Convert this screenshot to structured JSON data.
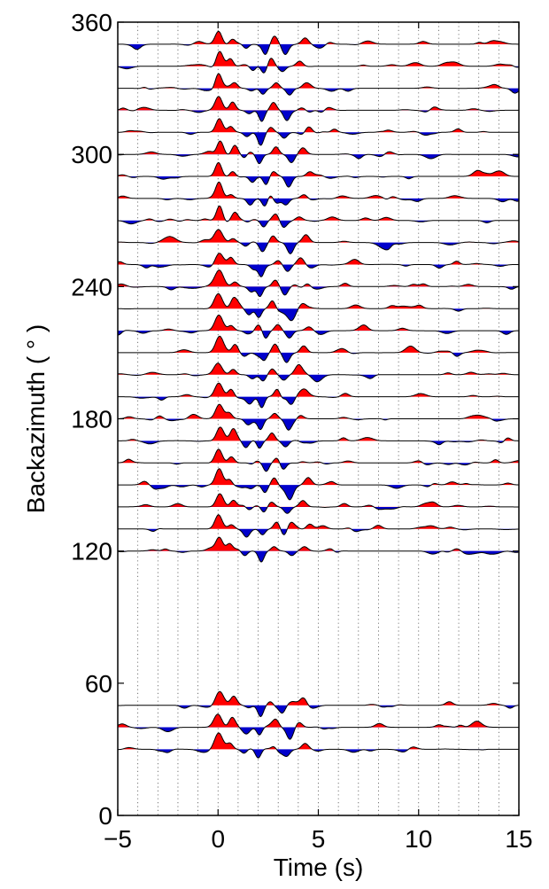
{
  "chart_data": {
    "type": "line",
    "title": "",
    "xlabel": "Time (s)",
    "ylabel": "Backazimuth ( ° )",
    "xlim": [
      -5,
      15
    ],
    "ylim": [
      0,
      360
    ],
    "xticks": [
      -5,
      0,
      5,
      10,
      15
    ],
    "xtick_labels": [
      "−5",
      "0",
      "5",
      "10",
      "15"
    ],
    "yticks": [
      0,
      60,
      120,
      180,
      240,
      300,
      360
    ],
    "ytick_labels": [
      "0",
      "60",
      "120",
      "180",
      "240",
      "300",
      "360"
    ],
    "x_gridlines": [
      -4,
      -3,
      -2,
      -1,
      0,
      1,
      2,
      3,
      4,
      5,
      6,
      7,
      8,
      9,
      10,
      11,
      12,
      13,
      14
    ],
    "grid": "vertical dotted",
    "positive_fill_color": "#ff0000",
    "negative_fill_color": "#0000cc",
    "trace_backazimuths": [
      30,
      40,
      50,
      120,
      130,
      140,
      150,
      160,
      170,
      180,
      190,
      200,
      210,
      220,
      230,
      240,
      250,
      260,
      270,
      280,
      290,
      300,
      310,
      320,
      330,
      340,
      350
    ]
  }
}
